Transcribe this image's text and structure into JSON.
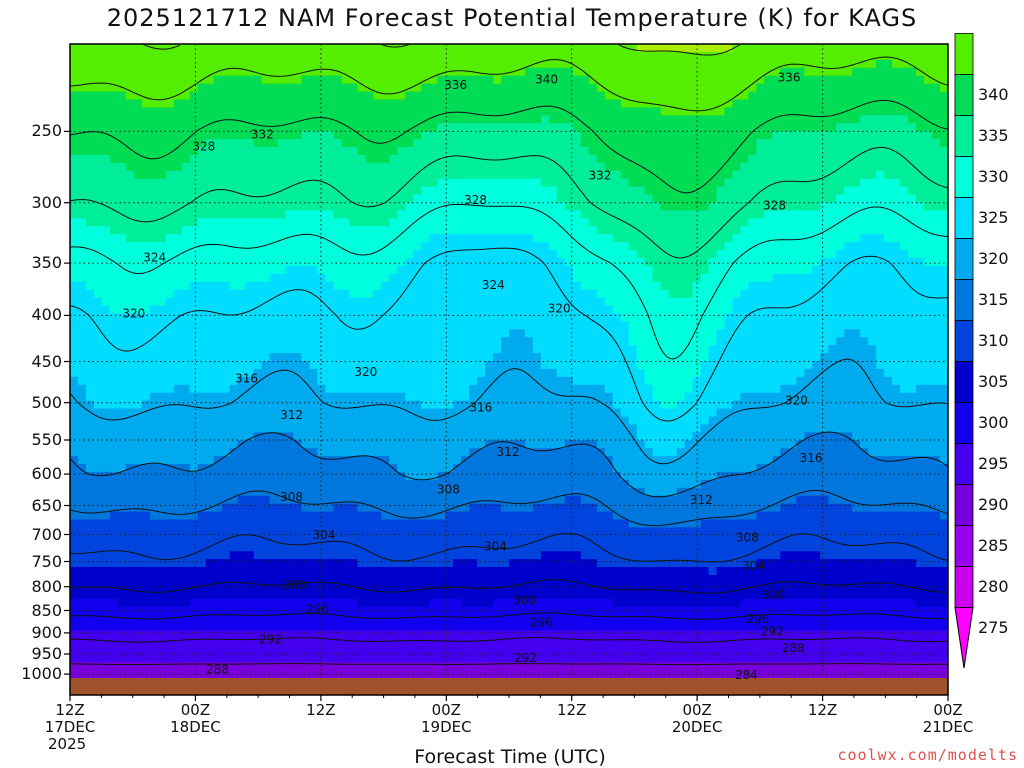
{
  "title": "2025121712 NAM Forecast Potential Temperature (K) for KAGS",
  "xlabel": "Forecast Time (UTC)",
  "credit": "coolwx.com/modelts",
  "colors": {
    "ground": "#a0522d",
    "grid": "#222222",
    "colorbar": [
      "#ff00ff",
      "#cc00ee",
      "#9900ee",
      "#7700dd",
      "#4400ee",
      "#1100ee",
      "#0000cc",
      "#0044dd",
      "#0077dd",
      "#00aaee",
      "#00ddff",
      "#00ffdd",
      "#00ee99",
      "#00dd55",
      "#55ee00",
      "#aaee00"
    ]
  },
  "chart_data": {
    "type": "heatmap",
    "title": "2025121712 NAM Forecast Potential Temperature (K) for KAGS",
    "xlabel": "Forecast Time (UTC)",
    "ylabel": "",
    "x_ticks": [
      {
        "hour": 0,
        "label": [
          "12Z",
          "17DEC",
          "2025"
        ]
      },
      {
        "hour": 12,
        "label": [
          "00Z",
          "18DEC"
        ]
      },
      {
        "hour": 24,
        "label": [
          "12Z"
        ]
      },
      {
        "hour": 36,
        "label": [
          "00Z",
          "19DEC"
        ]
      },
      {
        "hour": 48,
        "label": [
          "12Z"
        ]
      },
      {
        "hour": 60,
        "label": [
          "00Z",
          "20DEC"
        ]
      },
      {
        "hour": 72,
        "label": [
          "12Z"
        ]
      },
      {
        "hour": 84,
        "label": [
          "00Z",
          "21DEC"
        ]
      }
    ],
    "xlim_hours": [
      0,
      84
    ],
    "y_ticks": [
      250,
      300,
      350,
      400,
      450,
      500,
      550,
      600,
      650,
      700,
      750,
      800,
      850,
      900,
      950,
      1000
    ],
    "ylim_hPa": [
      1010,
      200
    ],
    "y_scale": "log",
    "colorbar_ticks": [
      275,
      280,
      285,
      290,
      295,
      300,
      305,
      310,
      315,
      320,
      325,
      330,
      335,
      340
    ],
    "colorbar_range": [
      272.5,
      342.5
    ],
    "legend_placement": "right",
    "grid": true,
    "contour_interval_K": 4,
    "contour_labels": [
      {
        "value": 336,
        "hour": 36.9,
        "p": 222
      },
      {
        "value": 340,
        "hour": 45.6,
        "p": 219
      },
      {
        "value": 336,
        "hour": 68.8,
        "p": 218
      },
      {
        "value": 328,
        "hour": 12.8,
        "p": 260
      },
      {
        "value": 332,
        "hour": 18.4,
        "p": 252
      },
      {
        "value": 332,
        "hour": 50.7,
        "p": 280
      },
      {
        "value": 328,
        "hour": 38.8,
        "p": 298
      },
      {
        "value": 328,
        "hour": 67.4,
        "p": 302
      },
      {
        "value": 324,
        "hour": 8.1,
        "p": 345
      },
      {
        "value": 324,
        "hour": 40.5,
        "p": 370
      },
      {
        "value": 320,
        "hour": 6.1,
        "p": 398
      },
      {
        "value": 320,
        "hour": 46.8,
        "p": 393
      },
      {
        "value": 320,
        "hour": 28.3,
        "p": 462
      },
      {
        "value": 316,
        "hour": 16.9,
        "p": 470
      },
      {
        "value": 316,
        "hour": 39.3,
        "p": 506
      },
      {
        "value": 320,
        "hour": 69.5,
        "p": 497
      },
      {
        "value": 312,
        "hour": 21.2,
        "p": 516
      },
      {
        "value": 312,
        "hour": 41.9,
        "p": 567
      },
      {
        "value": 316,
        "hour": 70.9,
        "p": 576
      },
      {
        "value": 308,
        "hour": 21.2,
        "p": 636
      },
      {
        "value": 308,
        "hour": 36.2,
        "p": 624
      },
      {
        "value": 312,
        "hour": 60.4,
        "p": 641
      },
      {
        "value": 304,
        "hour": 24.3,
        "p": 701
      },
      {
        "value": 304,
        "hour": 40.7,
        "p": 722
      },
      {
        "value": 308,
        "hour": 64.8,
        "p": 705
      },
      {
        "value": 304,
        "hour": 65.4,
        "p": 759
      },
      {
        "value": 300,
        "hour": 21.5,
        "p": 796
      },
      {
        "value": 300,
        "hour": 43.5,
        "p": 829
      },
      {
        "value": 300,
        "hour": 67.3,
        "p": 817
      },
      {
        "value": 296,
        "hour": 23.7,
        "p": 847
      },
      {
        "value": 296,
        "hour": 45.1,
        "p": 877
      },
      {
        "value": 296,
        "hour": 65.8,
        "p": 869
      },
      {
        "value": 292,
        "hour": 19.2,
        "p": 915
      },
      {
        "value": 292,
        "hour": 43.6,
        "p": 960
      },
      {
        "value": 292,
        "hour": 67.2,
        "p": 897
      },
      {
        "value": 288,
        "hour": 14.1,
        "p": 988
      },
      {
        "value": 288,
        "hour": 69.2,
        "p": 935
      },
      {
        "value": 284,
        "hour": 64.7,
        "p": 1002
      }
    ],
    "theta_profile_1000_to_200_hPa": {
      "levels_hPa": [
        1000,
        950,
        900,
        850,
        800,
        750,
        700,
        650,
        600,
        550,
        500,
        450,
        400,
        350,
        300,
        250,
        200
      ],
      "theta_K": [
        286,
        290,
        293,
        297,
        300,
        303,
        305,
        308,
        311,
        313,
        316,
        318,
        320,
        323,
        328,
        332,
        339
      ]
    }
  }
}
